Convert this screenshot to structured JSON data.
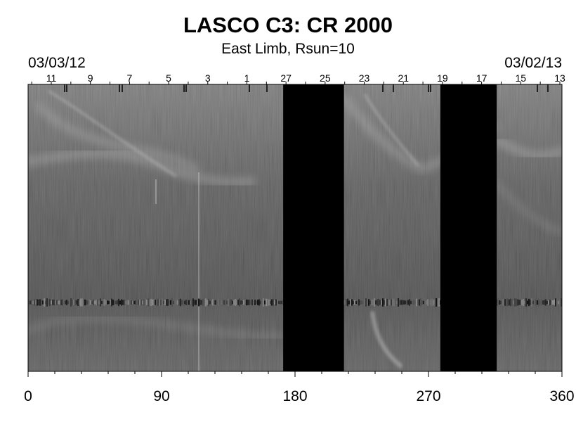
{
  "chart_data": {
    "type": "heatmap",
    "title": "LASCO C3: CR 2000",
    "subtitle": "East Limb, Rsun=10",
    "start_date": "03/03/12",
    "end_date": "03/02/13",
    "x_ticks": [
      "0",
      "90",
      "180",
      "270",
      "360"
    ],
    "xlim": [
      0,
      360
    ],
    "top_day_labels": [
      "11",
      "9",
      "7",
      "5",
      "3",
      "1",
      "27",
      "25",
      "23",
      "21",
      "19",
      "17",
      "15",
      "13"
    ],
    "data_gaps": [
      [
        172,
        213
      ],
      [
        278,
        316
      ]
    ],
    "bright_horizontal_band": "noisy streak at lower third",
    "colormap": "grayscale"
  }
}
